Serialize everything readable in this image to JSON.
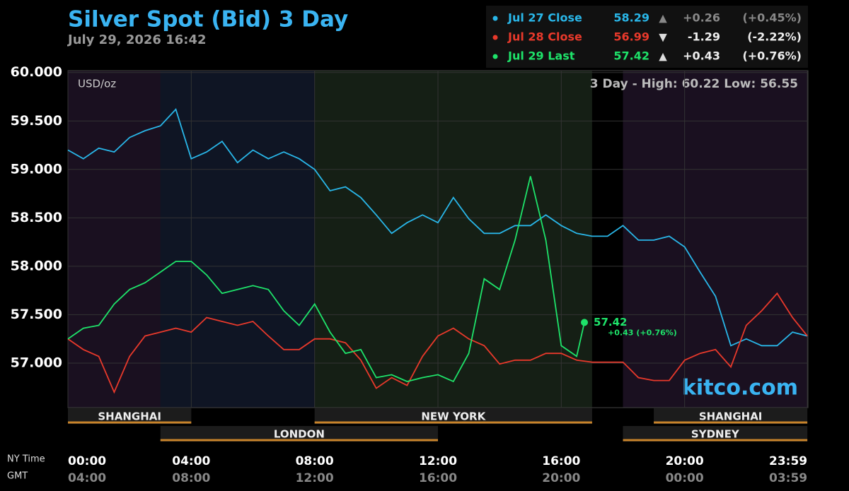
{
  "chart_data": {
    "type": "line",
    "title": "Silver Spot (Bid) 3 Day",
    "subtitle": "July 29, 2026 16:42",
    "unit_label": "USD/oz",
    "range_label": "3 Day - High: 60.22  Low: 56.55",
    "brand": "kitco.com",
    "x_row_labels": [
      "NY Time",
      "GMT"
    ],
    "xlim": [
      0,
      24
    ],
    "xticks": [
      {
        "value": 0,
        "label": "00:00"
      },
      {
        "value": 4,
        "label": "04:00"
      },
      {
        "value": 8,
        "label": "08:00"
      },
      {
        "value": 12,
        "label": "12:00"
      },
      {
        "value": 16,
        "label": "16:00"
      },
      {
        "value": 20,
        "label": "20:00"
      },
      {
        "value": 23.98,
        "label": "23:59"
      }
    ],
    "xticks_gmt": [
      "04:00",
      "08:00",
      "12:00",
      "16:00",
      "20:00",
      "00:00",
      "03:59"
    ],
    "ylim": [
      56.54,
      60.02
    ],
    "yticks": [
      {
        "value": 57,
        "label": "57.000"
      },
      {
        "value": 57.5,
        "label": "57.500"
      },
      {
        "value": 58,
        "label": "58.000"
      },
      {
        "value": 58.5,
        "label": "58.500"
      },
      {
        "value": 59,
        "label": "59.000"
      },
      {
        "value": 59.5,
        "label": "59.500"
      },
      {
        "value": 60,
        "label": "60.000"
      }
    ],
    "grid": true,
    "sessions": [
      {
        "name": "SHANGHAI",
        "start": 0,
        "end": 4,
        "shade": "#1a1020"
      },
      {
        "name": "LONDON",
        "start": 3,
        "end": 12,
        "shade": "#0f1524"
      },
      {
        "name": "NEW YORK",
        "start": 8,
        "end": 17,
        "shade": "#151f15"
      },
      {
        "name": "SHANGHAI",
        "start": 19,
        "end": 23.98,
        "shade": "#1a1020"
      },
      {
        "name": "SYDNEY",
        "start": 18,
        "end": 23.98,
        "shade": "#1a1020"
      }
    ],
    "series": [
      {
        "name": "Jul 27 Close",
        "color": "#29b6e8",
        "last": 58.29,
        "arrow": "▲",
        "change": "+0.26",
        "change_pct": "(+0.45%)",
        "x": [
          0,
          0.5,
          1,
          1.5,
          2,
          2.5,
          3,
          3.5,
          4,
          4.5,
          5,
          5.5,
          6,
          6.5,
          7,
          7.5,
          8,
          8.5,
          9,
          9.5,
          10,
          10.5,
          11,
          11.5,
          12,
          12.5,
          13,
          13.5,
          14,
          14.5,
          15,
          15.5,
          16,
          16.5,
          17,
          17.5,
          18,
          18.5,
          19,
          19.5,
          20,
          20.5,
          21,
          21.5,
          22,
          22.5,
          23,
          23.5,
          23.98
        ],
        "values": [
          59.2,
          59.11,
          59.22,
          59.18,
          59.33,
          59.4,
          59.45,
          59.62,
          59.11,
          59.18,
          59.29,
          59.07,
          59.2,
          59.11,
          59.18,
          59.11,
          59.0,
          58.78,
          58.82,
          58.71,
          58.53,
          58.34,
          58.45,
          58.53,
          58.45,
          58.71,
          58.49,
          58.34,
          58.34,
          58.42,
          58.42,
          58.53,
          58.42,
          58.34,
          58.31,
          58.31,
          58.42,
          58.27,
          58.27,
          58.31,
          58.2,
          57.94,
          57.69,
          57.18,
          57.25,
          57.18,
          57.18,
          57.32,
          57.28
        ]
      },
      {
        "name": "Jul 28 Close",
        "color": "#e8392b",
        "last": 56.99,
        "arrow": "▼",
        "change": "-1.29",
        "change_pct": "(-2.22%)",
        "x": [
          0,
          0.5,
          1,
          1.5,
          2,
          2.5,
          3,
          3.5,
          4,
          4.5,
          5,
          5.5,
          6,
          6.5,
          7,
          7.5,
          8,
          8.5,
          9,
          9.5,
          10,
          10.5,
          11,
          11.5,
          12,
          12.5,
          13,
          13.5,
          14,
          14.5,
          15,
          15.5,
          16,
          16.5,
          17,
          17.5,
          18,
          18.5,
          19,
          19.5,
          20,
          20.5,
          21,
          21.5,
          22,
          22.5,
          23,
          23.5,
          23.98
        ],
        "values": [
          57.25,
          57.14,
          57.07,
          56.7,
          57.07,
          57.28,
          57.32,
          57.36,
          57.32,
          57.47,
          57.43,
          57.39,
          57.43,
          57.28,
          57.14,
          57.14,
          57.25,
          57.25,
          57.21,
          57.03,
          56.74,
          56.85,
          56.77,
          57.07,
          57.28,
          57.36,
          57.25,
          57.18,
          56.99,
          57.03,
          57.03,
          57.1,
          57.1,
          57.03,
          57.01,
          57.01,
          57.01,
          56.85,
          56.82,
          56.82,
          57.03,
          57.1,
          57.14,
          56.96,
          57.39,
          57.54,
          57.72,
          57.47,
          57.28
        ]
      },
      {
        "name": "Jul 29 Last",
        "color": "#1ee36a",
        "last": 57.42,
        "arrow": "▲",
        "change": "+0.43",
        "change_pct": "(+0.76%)",
        "x": [
          0,
          0.5,
          1,
          1.5,
          2,
          2.5,
          3,
          3.5,
          4,
          4.5,
          5,
          5.5,
          6,
          6.5,
          7,
          7.5,
          8,
          8.5,
          9,
          9.5,
          10,
          10.5,
          11,
          11.5,
          12,
          12.5,
          13,
          13.5,
          14,
          14.5,
          15,
          15.5,
          16,
          16.5,
          16.75
        ],
        "values": [
          57.25,
          57.36,
          57.39,
          57.61,
          57.76,
          57.83,
          57.94,
          58.05,
          58.05,
          57.91,
          57.72,
          57.76,
          57.8,
          57.76,
          57.54,
          57.39,
          57.61,
          57.32,
          57.1,
          57.14,
          56.85,
          56.88,
          56.81,
          56.85,
          56.88,
          56.81,
          57.1,
          57.87,
          57.76,
          58.27,
          58.93,
          58.27,
          57.18,
          57.07,
          57.42
        ]
      }
    ]
  }
}
